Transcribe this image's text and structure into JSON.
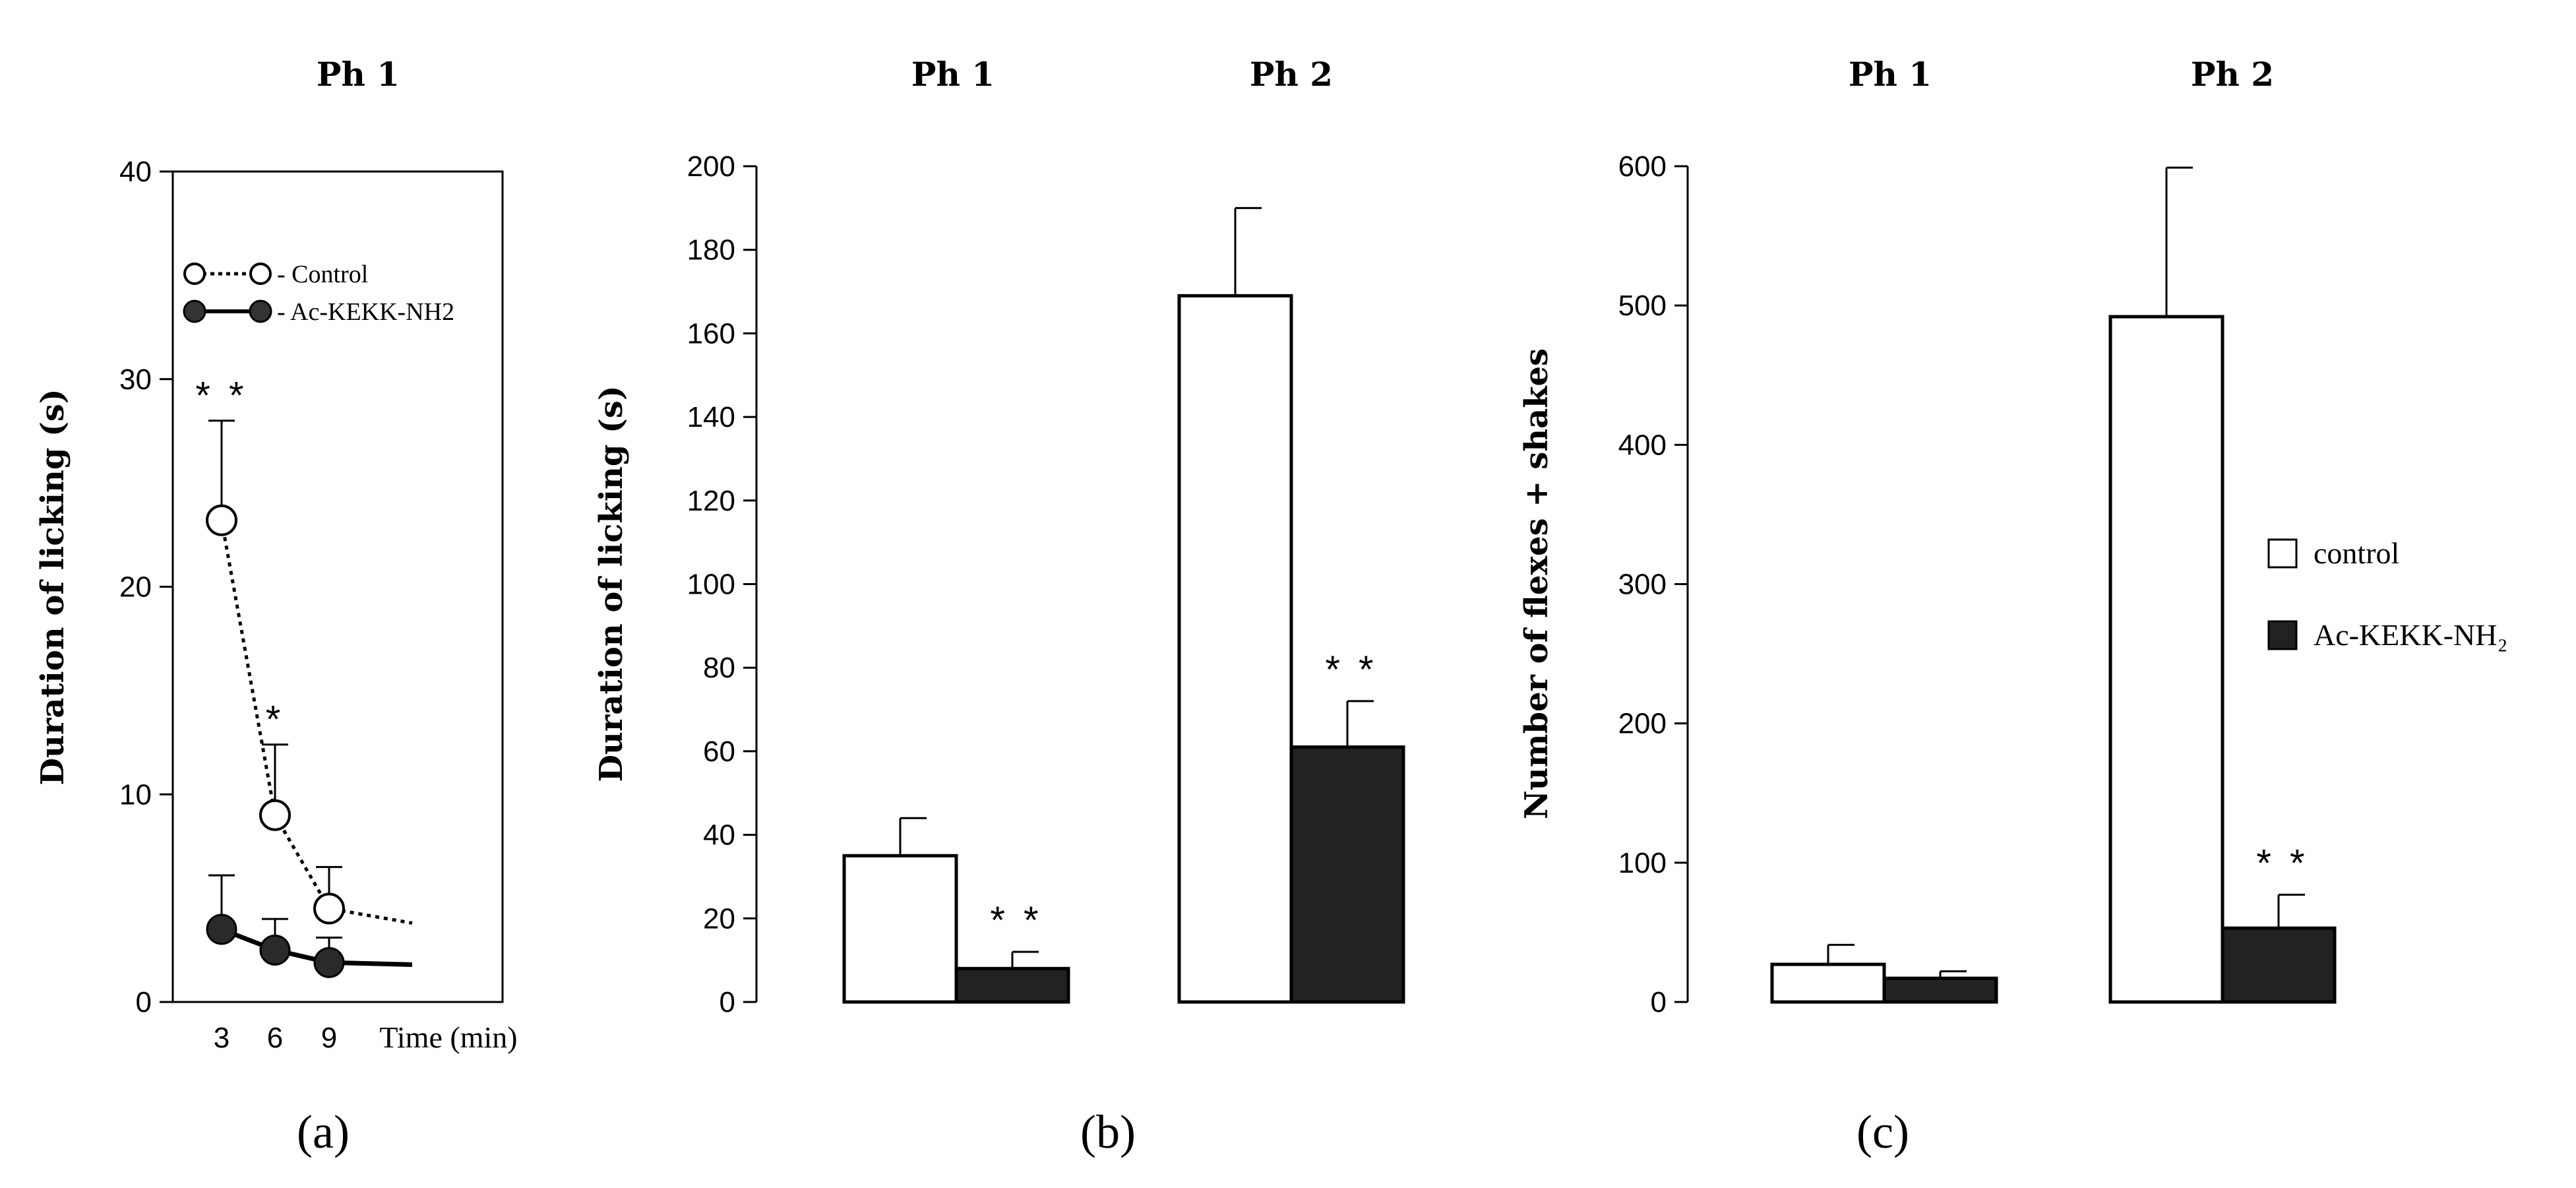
{
  "colors": {
    "control": "#ffffff",
    "treatment": "#222222",
    "ink": "#000000"
  },
  "chart_data": [
    {
      "panel": "(a)",
      "type": "line",
      "title": "Ph 1",
      "xlabel": "Time (min)",
      "ylabel": "Duration of licking (s)",
      "x": [
        3,
        6,
        9
      ],
      "xticks": [
        "3",
        "6",
        "9"
      ],
      "ylim": [
        0,
        40
      ],
      "yticks": [
        "0",
        "10",
        "20",
        "30",
        "40"
      ],
      "series": [
        {
          "name": "- Control",
          "values": [
            23.2,
            9.0,
            4.5
          ],
          "errors": [
            4.8,
            3.4,
            2.0
          ],
          "marker": "open-circle",
          "line": "dotted",
          "tail": 3.8
        },
        {
          "name": "- Ac-KEKK-NH2",
          "values": [
            3.5,
            2.5,
            1.9
          ],
          "errors": [
            2.6,
            1.5,
            1.2
          ],
          "marker": "filled-circle",
          "line": "solid",
          "tail": 1.8
        }
      ],
      "annotations": [
        {
          "x": 3,
          "text": "* *"
        },
        {
          "x": 6,
          "text": "*"
        }
      ],
      "legend_position": "top"
    },
    {
      "panel": "(b)",
      "type": "bar",
      "categories": [
        "Ph 1",
        "Ph 2"
      ],
      "ylabel": "Duration of licking (s)",
      "ylim": [
        0,
        200
      ],
      "yticks": [
        "0",
        "20",
        "40",
        "60",
        "80",
        "100",
        "120",
        "140",
        "160",
        "180",
        "200"
      ],
      "series": [
        {
          "name": "control",
          "values": [
            35,
            169
          ],
          "errors": [
            9,
            21
          ]
        },
        {
          "name": "Ac-KEKK-NH₂",
          "values": [
            8,
            61
          ],
          "errors": [
            4,
            11
          ]
        }
      ],
      "annotations": [
        {
          "category": "Ph 1",
          "series": 1,
          "text": "* *"
        },
        {
          "category": "Ph 2",
          "series": 1,
          "text": "* *"
        }
      ]
    },
    {
      "panel": "(c)",
      "type": "bar",
      "categories": [
        "Ph 1",
        "Ph 2"
      ],
      "ylabel": "Number of flexes + shakes",
      "ylim": [
        0,
        600
      ],
      "yticks": [
        "0",
        "100",
        "200",
        "300",
        "400",
        "500",
        "600"
      ],
      "series": [
        {
          "name": "control",
          "values": [
            27,
            492
          ],
          "errors": [
            14,
            107
          ]
        },
        {
          "name": "Ac-KEKK-NH₂",
          "values": [
            17,
            53
          ],
          "errors": [
            5,
            24
          ]
        }
      ],
      "annotations": [
        {
          "category": "Ph 2",
          "series": 1,
          "text": "* *"
        }
      ],
      "legend_position": "right"
    }
  ]
}
